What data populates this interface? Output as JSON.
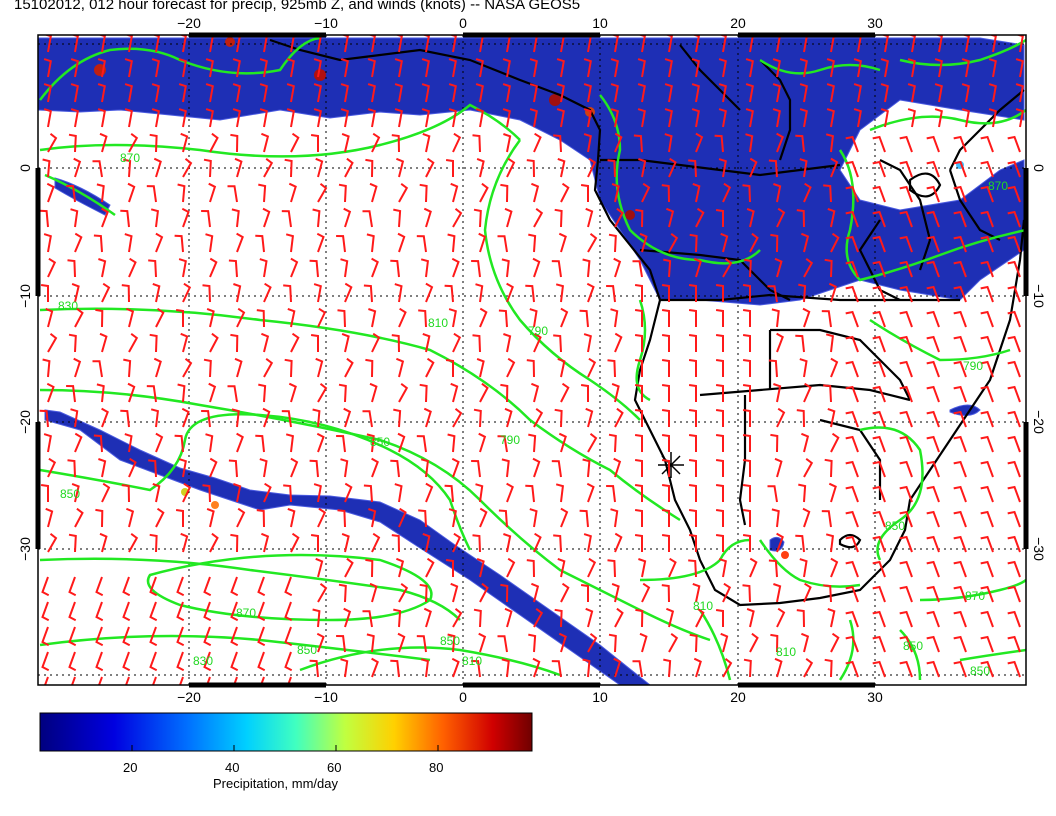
{
  "title": "15102012, 012 hour forecast for precip, 925mb Z, and winds (knots) -- NASA GEOS5",
  "axes": {
    "lon_ticks": [
      "−20",
      "−10",
      "0",
      "10",
      "20",
      "30"
    ],
    "lat_ticks": [
      "0",
      "−10",
      "−20",
      "−30"
    ],
    "lon_range": [
      -30,
      40
    ],
    "lat_range": [
      -39,
      9.5
    ]
  },
  "contour_labels": [
    "810",
    "850",
    "870",
    "790",
    "830",
    "850",
    "870",
    "850",
    "830",
    "810",
    "790",
    "810",
    "850",
    "870",
    "850",
    "850",
    "810",
    "790",
    "870",
    "850"
  ],
  "colorbar": {
    "tick_labels": [
      "20",
      "40",
      "60",
      "80"
    ],
    "title": "Precipitation, mm/day",
    "colors": [
      "#00007f",
      "#0000d0",
      "#0060ff",
      "#00c8ff",
      "#40ffb8",
      "#b8ff40",
      "#ffd000",
      "#ff6000",
      "#d00000",
      "#7f0000"
    ]
  },
  "styles": {
    "precip_color": "#1e2fb5",
    "contour_color": "#22e822",
    "barb_color": "#ff1a1a",
    "coast_color": "#000000"
  }
}
